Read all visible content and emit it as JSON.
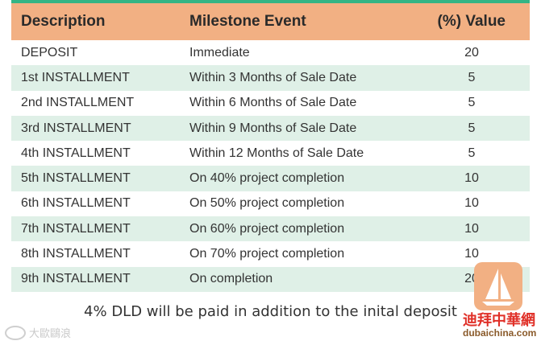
{
  "table": {
    "headers": [
      "Description",
      "Milestone Event",
      "(%) Value"
    ],
    "rows": [
      [
        "DEPOSIT",
        "Immediate",
        "20"
      ],
      [
        "1st INSTALLMENT",
        "Within 3 Months of Sale Date",
        "5"
      ],
      [
        "2nd INSTALLMENT",
        "Within 6 Months of Sale Date",
        "5"
      ],
      [
        "3rd INSTALLMENT",
        "Within 9 Months of Sale Date",
        "5"
      ],
      [
        "4th INSTALLMENT",
        "Within 12 Months of Sale Date",
        "5"
      ],
      [
        "5th INSTALLMENT",
        "On 40% project completion",
        "10"
      ],
      [
        "6th INSTALLMENT",
        "On 50% project completion",
        "10"
      ],
      [
        "7th INSTALLMENT",
        "On 60% project completion",
        "10"
      ],
      [
        "8th INSTALLMENT",
        "On 70% project completion",
        "10"
      ],
      [
        "9th INSTALLMENT",
        "On completion",
        "20"
      ]
    ]
  },
  "note": "4% DLD will be paid in addition to the inital deposit",
  "watermark": {
    "left_text": "大歐鷗浪",
    "right_cn": "迪拜中華網",
    "right_url": "dubaichina.com"
  },
  "colors": {
    "accent_green": "#33b585",
    "header_bg": "#f2b083",
    "alt_row_bg": "#dff0e7"
  }
}
